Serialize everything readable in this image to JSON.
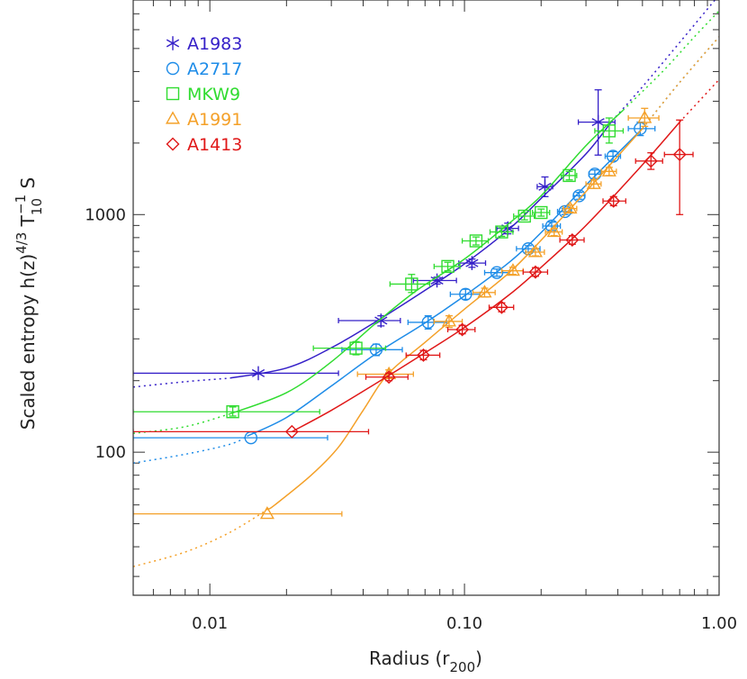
{
  "chart_data": {
    "type": "scatter",
    "x_scale": "log",
    "y_scale": "log",
    "xlim": [
      0.005,
      1.0
    ],
    "ylim": [
      25,
      8000
    ],
    "xlabel": {
      "main": "Radius (r",
      "sub": "200",
      "close": ")"
    },
    "ylabel": {
      "main": "Scaled entropy h(z)",
      "sup1": "4/3",
      "T": " T",
      "sub": "10",
      "sup2": "−1",
      "tail": " S"
    },
    "x_ticks": [
      {
        "value": 0.01,
        "label": "0.01"
      },
      {
        "value": 0.1,
        "label": "0.10"
      },
      {
        "value": 1.0,
        "label": "1.00"
      }
    ],
    "y_ticks": [
      {
        "value": 100,
        "label": "100"
      },
      {
        "value": 1000,
        "label": "1000"
      }
    ],
    "legend_position": "top-left",
    "series": [
      {
        "name": "A1983",
        "color": "#3520c8",
        "marker": "asterisk",
        "points": [
          {
            "x": 0.0155,
            "y": 215,
            "xlo": 0.005,
            "xhi": 0.032
          },
          {
            "x": 0.047,
            "y": 358,
            "xlo": 0.032,
            "xhi": 0.056,
            "ylo": 340,
            "yhi": 375
          },
          {
            "x": 0.078,
            "y": 528,
            "xlo": 0.063,
            "xhi": 0.093,
            "ylo": 510,
            "yhi": 545
          },
          {
            "x": 0.107,
            "y": 625,
            "xlo": 0.095,
            "xhi": 0.121,
            "ylo": 600,
            "yhi": 650
          },
          {
            "x": 0.148,
            "y": 875,
            "xlo": 0.134,
            "xhi": 0.163,
            "ylo": 830,
            "yhi": 920
          },
          {
            "x": 0.207,
            "y": 1310,
            "xlo": 0.193,
            "xhi": 0.222,
            "ylo": 1190,
            "yhi": 1440
          },
          {
            "x": 0.335,
            "y": 2450,
            "xlo": 0.28,
            "xhi": 0.39,
            "ylo": 1780,
            "yhi": 3350
          }
        ],
        "fit": [
          [
            0.005,
            188
          ],
          [
            0.008,
            198
          ],
          [
            0.012,
            205
          ],
          [
            0.02,
            226
          ],
          [
            0.03,
            275
          ],
          [
            0.045,
            355
          ],
          [
            0.07,
            480
          ],
          [
            0.1,
            620
          ],
          [
            0.15,
            870
          ],
          [
            0.2,
            1170
          ],
          [
            0.3,
            1800
          ],
          [
            0.38,
            2480
          ],
          [
            0.5,
            3450
          ],
          [
            0.7,
            5300
          ],
          [
            1.0,
            8400
          ]
        ],
        "fit_solid_range": [
          0.012,
          0.38
        ]
      },
      {
        "name": "A2717",
        "color": "#1e8ce8",
        "marker": "circle",
        "points": [
          {
            "x": 0.0145,
            "y": 115,
            "xlo": 0.005,
            "xhi": 0.029
          },
          {
            "x": 0.045,
            "y": 270,
            "xlo": 0.033,
            "xhi": 0.057,
            "ylo": 255,
            "yhi": 285
          },
          {
            "x": 0.072,
            "y": 352,
            "xlo": 0.06,
            "xhi": 0.085,
            "ylo": 330,
            "yhi": 375
          },
          {
            "x": 0.101,
            "y": 462,
            "xlo": 0.088,
            "xhi": 0.115,
            "ylo": 440,
            "yhi": 485
          },
          {
            "x": 0.134,
            "y": 570,
            "xlo": 0.12,
            "xhi": 0.15,
            "ylo": 550,
            "yhi": 590
          },
          {
            "x": 0.178,
            "y": 718,
            "xlo": 0.16,
            "xhi": 0.198,
            "ylo": 695,
            "yhi": 740
          },
          {
            "x": 0.22,
            "y": 895,
            "xlo": 0.203,
            "xhi": 0.238,
            "ylo": 860,
            "yhi": 930
          },
          {
            "x": 0.248,
            "y": 1030,
            "xlo": 0.232,
            "xhi": 0.263,
            "ylo": 1000,
            "yhi": 1060
          },
          {
            "x": 0.282,
            "y": 1200,
            "xlo": 0.268,
            "xhi": 0.297,
            "ylo": 1160,
            "yhi": 1240
          },
          {
            "x": 0.325,
            "y": 1480,
            "xlo": 0.308,
            "xhi": 0.343,
            "ylo": 1420,
            "yhi": 1540
          },
          {
            "x": 0.383,
            "y": 1760,
            "xlo": 0.357,
            "xhi": 0.41,
            "ylo": 1680,
            "yhi": 1840
          },
          {
            "x": 0.49,
            "y": 2300,
            "xlo": 0.44,
            "xhi": 0.56,
            "ylo": 2150,
            "yhi": 2450
          }
        ],
        "fit": [
          [
            0.005,
            90
          ],
          [
            0.008,
            98
          ],
          [
            0.012,
            108
          ],
          [
            0.02,
            140
          ],
          [
            0.03,
            190
          ],
          [
            0.045,
            260
          ],
          [
            0.07,
            350
          ],
          [
            0.1,
            455
          ],
          [
            0.15,
            630
          ],
          [
            0.2,
            840
          ],
          [
            0.3,
            1330
          ],
          [
            0.5,
            2300
          ],
          [
            0.7,
            3600
          ],
          [
            1.0,
            5600
          ]
        ],
        "fit_solid_range": [
          0.014,
          0.5
        ]
      },
      {
        "name": "MKW9",
        "color": "#30dc30",
        "marker": "square",
        "points": [
          {
            "x": 0.0123,
            "y": 148,
            "xlo": 0.005,
            "xhi": 0.027,
            "ylo": 142,
            "yhi": 155
          },
          {
            "x": 0.0375,
            "y": 274,
            "xlo": 0.0255,
            "xhi": 0.049,
            "ylo": 257,
            "yhi": 292
          },
          {
            "x": 0.062,
            "y": 510,
            "xlo": 0.051,
            "xhi": 0.073,
            "ylo": 470,
            "yhi": 560
          },
          {
            "x": 0.086,
            "y": 605,
            "xlo": 0.076,
            "xhi": 0.096,
            "ylo": 580,
            "yhi": 630
          },
          {
            "x": 0.111,
            "y": 775,
            "xlo": 0.098,
            "xhi": 0.124,
            "ylo": 745,
            "yhi": 805
          },
          {
            "x": 0.14,
            "y": 845,
            "xlo": 0.126,
            "xhi": 0.155,
            "ylo": 810,
            "yhi": 880
          },
          {
            "x": 0.172,
            "y": 985,
            "xlo": 0.156,
            "xhi": 0.188,
            "ylo": 950,
            "yhi": 1020
          },
          {
            "x": 0.2,
            "y": 1020,
            "xlo": 0.185,
            "xhi": 0.216,
            "ylo": 985,
            "yhi": 1055
          },
          {
            "x": 0.258,
            "y": 1460,
            "xlo": 0.24,
            "xhi": 0.276,
            "ylo": 1400,
            "yhi": 1520
          },
          {
            "x": 0.37,
            "y": 2250,
            "xlo": 0.325,
            "xhi": 0.42,
            "ylo": 2000,
            "yhi": 2550
          }
        ],
        "fit": [
          [
            0.005,
            120
          ],
          [
            0.008,
            128
          ],
          [
            0.012,
            145
          ],
          [
            0.02,
            178
          ],
          [
            0.03,
            240
          ],
          [
            0.045,
            350
          ],
          [
            0.065,
            480
          ],
          [
            0.1,
            650
          ],
          [
            0.15,
            920
          ],
          [
            0.2,
            1200
          ],
          [
            0.3,
            1950
          ],
          [
            0.42,
            2750
          ],
          [
            0.6,
            4000
          ],
          [
            0.8,
            5600
          ],
          [
            1.0,
            7200
          ]
        ],
        "fit_solid_range": [
          0.012,
          0.42
        ]
      },
      {
        "name": "A1991",
        "color": "#f4a028",
        "marker": "triangle",
        "points": [
          {
            "x": 0.0168,
            "y": 55,
            "xlo": 0.005,
            "xhi": 0.033
          },
          {
            "x": 0.0505,
            "y": 213,
            "xlo": 0.038,
            "xhi": 0.063,
            "ylo": 205,
            "yhi": 222
          },
          {
            "x": 0.087,
            "y": 355,
            "xlo": 0.076,
            "xhi": 0.098,
            "ylo": 335,
            "yhi": 375
          },
          {
            "x": 0.12,
            "y": 470,
            "xlo": 0.108,
            "xhi": 0.132,
            "ylo": 450,
            "yhi": 490
          },
          {
            "x": 0.155,
            "y": 580,
            "xlo": 0.14,
            "xhi": 0.17,
            "ylo": 560,
            "yhi": 600
          },
          {
            "x": 0.19,
            "y": 695,
            "xlo": 0.174,
            "xhi": 0.206,
            "ylo": 670,
            "yhi": 720
          },
          {
            "x": 0.225,
            "y": 845,
            "xlo": 0.208,
            "xhi": 0.242,
            "ylo": 815,
            "yhi": 875
          },
          {
            "x": 0.26,
            "y": 1060,
            "xlo": 0.244,
            "xhi": 0.276,
            "ylo": 1025,
            "yhi": 1095
          },
          {
            "x": 0.322,
            "y": 1345,
            "xlo": 0.3,
            "xhi": 0.344,
            "ylo": 1290,
            "yhi": 1400
          },
          {
            "x": 0.37,
            "y": 1520,
            "xlo": 0.345,
            "xhi": 0.395,
            "ylo": 1460,
            "yhi": 1580
          },
          {
            "x": 0.51,
            "y": 2550,
            "xlo": 0.44,
            "xhi": 0.58,
            "ylo": 2350,
            "yhi": 2800
          }
        ],
        "fit": [
          [
            0.005,
            33
          ],
          [
            0.008,
            38
          ],
          [
            0.012,
            46
          ],
          [
            0.018,
            60
          ],
          [
            0.025,
            80
          ],
          [
            0.032,
            105
          ],
          [
            0.04,
            150
          ],
          [
            0.05,
            213
          ],
          [
            0.07,
            290
          ],
          [
            0.1,
            400
          ],
          [
            0.15,
            570
          ],
          [
            0.2,
            780
          ],
          [
            0.3,
            1250
          ],
          [
            0.5,
            2300
          ],
          [
            0.7,
            3600
          ],
          [
            1.0,
            5600
          ]
        ],
        "fit_solid_range": [
          0.017,
          0.5
        ]
      },
      {
        "name": "A1413",
        "color": "#e01818",
        "marker": "diamond",
        "points": [
          {
            "x": 0.021,
            "y": 122,
            "xlo": 0.005,
            "xhi": 0.042
          },
          {
            "x": 0.0505,
            "y": 207,
            "xlo": 0.041,
            "xhi": 0.06,
            "ylo": 200,
            "yhi": 215
          },
          {
            "x": 0.069,
            "y": 256,
            "xlo": 0.059,
            "xhi": 0.08,
            "ylo": 245,
            "yhi": 268
          },
          {
            "x": 0.098,
            "y": 328,
            "xlo": 0.086,
            "xhi": 0.11,
            "ylo": 315,
            "yhi": 342
          },
          {
            "x": 0.14,
            "y": 407,
            "xlo": 0.125,
            "xhi": 0.156,
            "ylo": 390,
            "yhi": 425
          },
          {
            "x": 0.19,
            "y": 573,
            "xlo": 0.17,
            "xhi": 0.212,
            "ylo": 550,
            "yhi": 598
          },
          {
            "x": 0.265,
            "y": 782,
            "xlo": 0.237,
            "xhi": 0.295,
            "ylo": 750,
            "yhi": 815
          },
          {
            "x": 0.385,
            "y": 1140,
            "xlo": 0.35,
            "xhi": 0.43,
            "ylo": 1090,
            "yhi": 1190
          },
          {
            "x": 0.54,
            "y": 1680,
            "xlo": 0.47,
            "xhi": 0.6,
            "ylo": 1550,
            "yhi": 1820
          },
          {
            "x": 0.7,
            "y": 1790,
            "xlo": 0.61,
            "xhi": 0.79,
            "ylo": 1000,
            "yhi": 2500
          }
        ],
        "fit": [
          [
            0.021,
            122
          ],
          [
            0.03,
            150
          ],
          [
            0.045,
            195
          ],
          [
            0.07,
            262
          ],
          [
            0.1,
            335
          ],
          [
            0.15,
            460
          ],
          [
            0.2,
            600
          ],
          [
            0.3,
            900
          ],
          [
            0.5,
            1620
          ],
          [
            0.7,
            2450
          ],
          [
            1.0,
            3700
          ]
        ],
        "fit_solid_range": [
          0.021,
          0.7
        ]
      }
    ]
  }
}
